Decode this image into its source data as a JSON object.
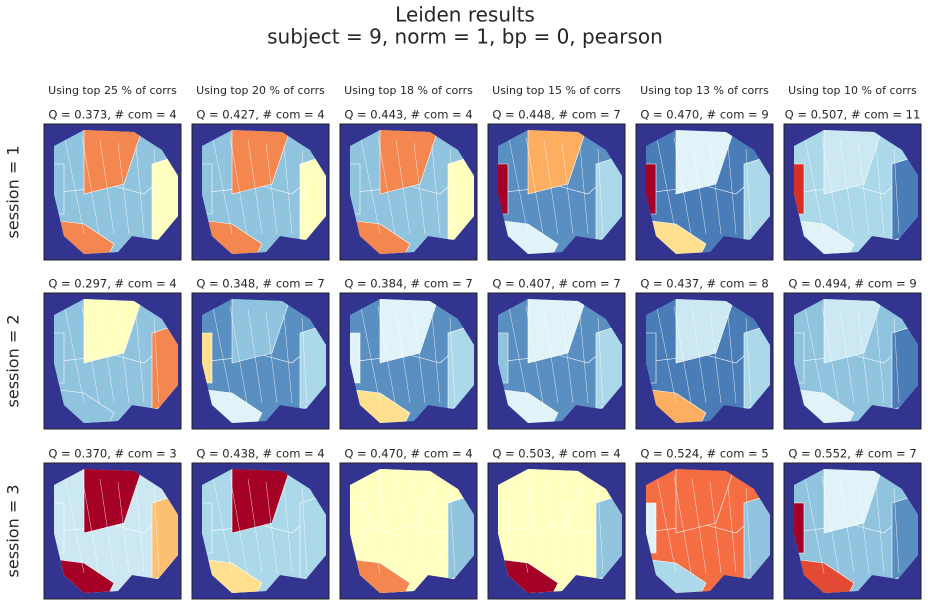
{
  "figure": {
    "title": "Leiden results",
    "subtitle": "subject = 9,   norm = 1,   bp = 0,   pearson",
    "columns": [
      {
        "header": "Using top 25 % of corrs"
      },
      {
        "header": "Using top 20 % of corrs"
      },
      {
        "header": "Using top 18 % of corrs"
      },
      {
        "header": "Using top 15 % of corrs"
      },
      {
        "header": "Using top 13 % of corrs"
      },
      {
        "header": "Using top 10 % of corrs"
      }
    ],
    "rows": [
      {
        "label": "session = 1",
        "panels": [
          {
            "title": "Q = 0.373,  # com = 4"
          },
          {
            "title": "Q = 0.427,  # com = 4"
          },
          {
            "title": "Q = 0.443,  # com = 4"
          },
          {
            "title": "Q = 0.448,  # com = 7"
          },
          {
            "title": "Q = 0.470,  # com = 9"
          },
          {
            "title": "Q = 0.507,  # com = 11"
          }
        ]
      },
      {
        "label": "session = 2",
        "panels": [
          {
            "title": "Q = 0.297,  # com = 4"
          },
          {
            "title": "Q = 0.348,  # com = 7"
          },
          {
            "title": "Q = 0.384,  # com = 7"
          },
          {
            "title": "Q = 0.407,  # com = 7"
          },
          {
            "title": "Q = 0.437,  # com = 8"
          },
          {
            "title": "Q = 0.494,  # com = 9"
          }
        ]
      },
      {
        "label": "session = 3",
        "panels": [
          {
            "title": "Q = 0.370,  # com = 3"
          },
          {
            "title": "Q = 0.438,  # com = 4"
          },
          {
            "title": "Q = 0.470,  # com = 4"
          },
          {
            "title": "Q = 0.503,  # com = 4"
          },
          {
            "title": "Q = 0.524,  # com = 5"
          },
          {
            "title": "Q = 0.552,  # com = 7"
          }
        ]
      }
    ]
  }
}
